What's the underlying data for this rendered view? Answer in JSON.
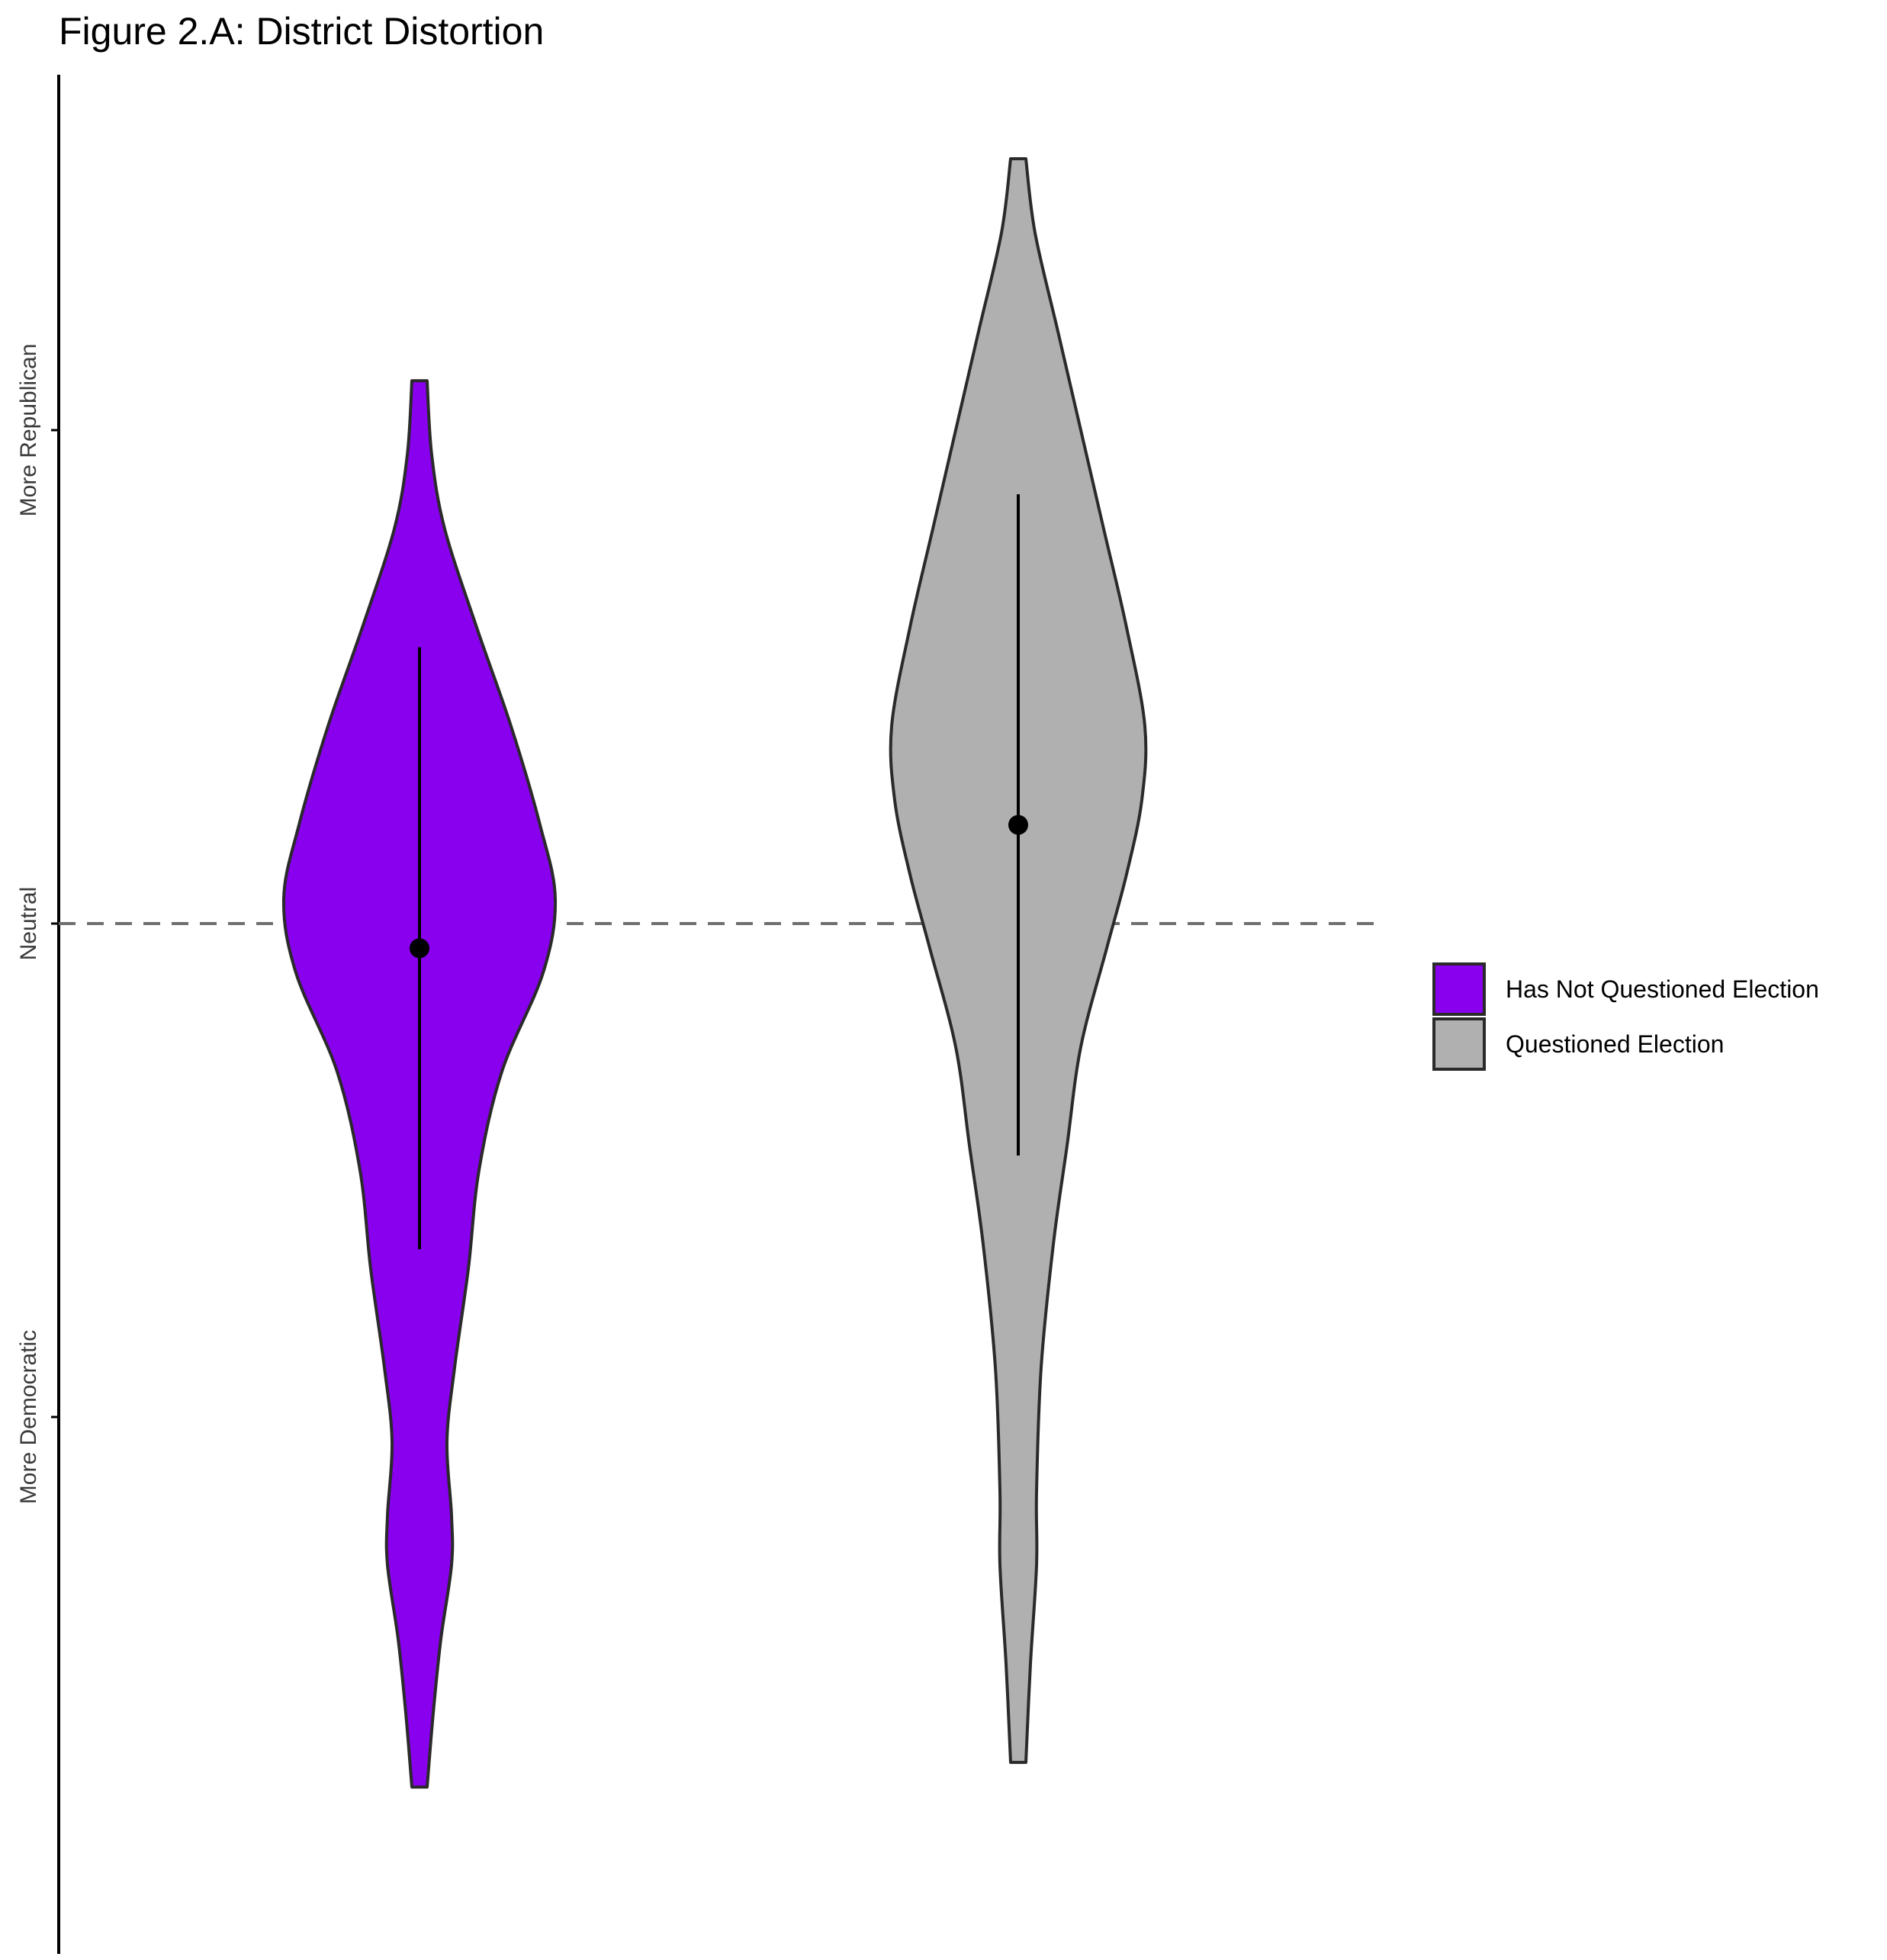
{
  "chart_data": {
    "type": "violin",
    "title": "Figure 2.A: District Distortion",
    "xlabel": "",
    "ylabel": "",
    "ylim": [
      -1.55,
      1.9
    ],
    "yticks": [
      {
        "value": 1,
        "label": "More Republican"
      },
      {
        "value": 0,
        "label": "Neutral"
      },
      {
        "value": -1,
        "label": "More Democratic"
      }
    ],
    "reference_line": {
      "value": 0,
      "style": "dashed",
      "color": "#707070"
    },
    "grid": false,
    "legend": {
      "placement": "right",
      "entries": [
        "Has Not Questioned Election",
        "Questioned Election"
      ]
    },
    "series": [
      {
        "name": "Has Not Questioned Election",
        "color": "#8800EE",
        "position": 0,
        "mean": -0.05,
        "ci": [
          -0.66,
          0.56
        ],
        "density": [
          {
            "y": 1.1,
            "w": 0.1
          },
          {
            "y": 0.95,
            "w": 0.16
          },
          {
            "y": 0.8,
            "w": 0.33
          },
          {
            "y": 0.6,
            "w": 0.75
          },
          {
            "y": 0.4,
            "w": 1.2
          },
          {
            "y": 0.2,
            "w": 1.58
          },
          {
            "y": 0.05,
            "w": 1.78
          },
          {
            "y": -0.1,
            "w": 1.62
          },
          {
            "y": -0.3,
            "w": 1.08
          },
          {
            "y": -0.5,
            "w": 0.78
          },
          {
            "y": -0.7,
            "w": 0.64
          },
          {
            "y": -0.9,
            "w": 0.46
          },
          {
            "y": -1.05,
            "w": 0.36
          },
          {
            "y": -1.2,
            "w": 0.42
          },
          {
            "y": -1.3,
            "w": 0.42
          },
          {
            "y": -1.45,
            "w": 0.28
          },
          {
            "y": -1.6,
            "w": 0.18
          },
          {
            "y": -1.75,
            "w": 0.1
          }
        ]
      },
      {
        "name": "Questioned Election",
        "color": "#B0B0B0",
        "position": 1,
        "mean": 0.2,
        "ci": [
          -0.47,
          0.87
        ],
        "density": [
          {
            "y": 1.55,
            "w": 0.1
          },
          {
            "y": 1.4,
            "w": 0.22
          },
          {
            "y": 1.2,
            "w": 0.52
          },
          {
            "y": 1.0,
            "w": 0.82
          },
          {
            "y": 0.8,
            "w": 1.12
          },
          {
            "y": 0.6,
            "w": 1.42
          },
          {
            "y": 0.4,
            "w": 1.66
          },
          {
            "y": 0.25,
            "w": 1.62
          },
          {
            "y": 0.1,
            "w": 1.42
          },
          {
            "y": -0.05,
            "w": 1.16
          },
          {
            "y": -0.25,
            "w": 0.82
          },
          {
            "y": -0.45,
            "w": 0.64
          },
          {
            "y": -0.65,
            "w": 0.46
          },
          {
            "y": -0.9,
            "w": 0.3
          },
          {
            "y": -1.15,
            "w": 0.24
          },
          {
            "y": -1.3,
            "w": 0.24
          },
          {
            "y": -1.5,
            "w": 0.16
          },
          {
            "y": -1.7,
            "w": 0.1
          }
        ]
      }
    ]
  }
}
